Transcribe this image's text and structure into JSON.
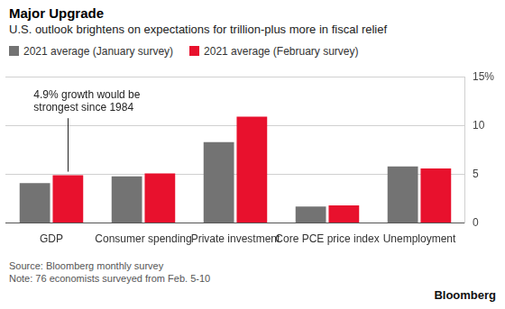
{
  "chart_data": {
    "type": "bar",
    "title": "Major Upgrade",
    "subtitle": "U.S. outlook brightens on expectations for trillion-plus more in fiscal relief",
    "categories": [
      "GDP",
      "Consumer spending",
      "Private investment",
      "Core PCE price index",
      "Unemployment"
    ],
    "series": [
      {
        "name": "2021 average (January survey)",
        "color": "#737373",
        "values": [
          4.1,
          4.8,
          8.3,
          1.7,
          5.8
        ]
      },
      {
        "name": "2021 average (February survey)",
        "color": "#e8112d",
        "values": [
          4.9,
          5.1,
          10.9,
          1.8,
          5.6
        ]
      }
    ],
    "ylim": [
      0,
      15
    ],
    "yticks": [
      0,
      5,
      10,
      {
        "value": 15,
        "label": "15%"
      }
    ],
    "grid": true,
    "legend": "top-left",
    "annotations": [
      {
        "text": [
          "4.9% growth would be",
          "strongest since 1984"
        ],
        "x": "GDP",
        "y": 4.9
      }
    ],
    "source": "Source: Bloomberg monthly survey",
    "note": "Note: 76 economists surveyed from Feb. 5-10",
    "logo": "Bloomberg"
  }
}
